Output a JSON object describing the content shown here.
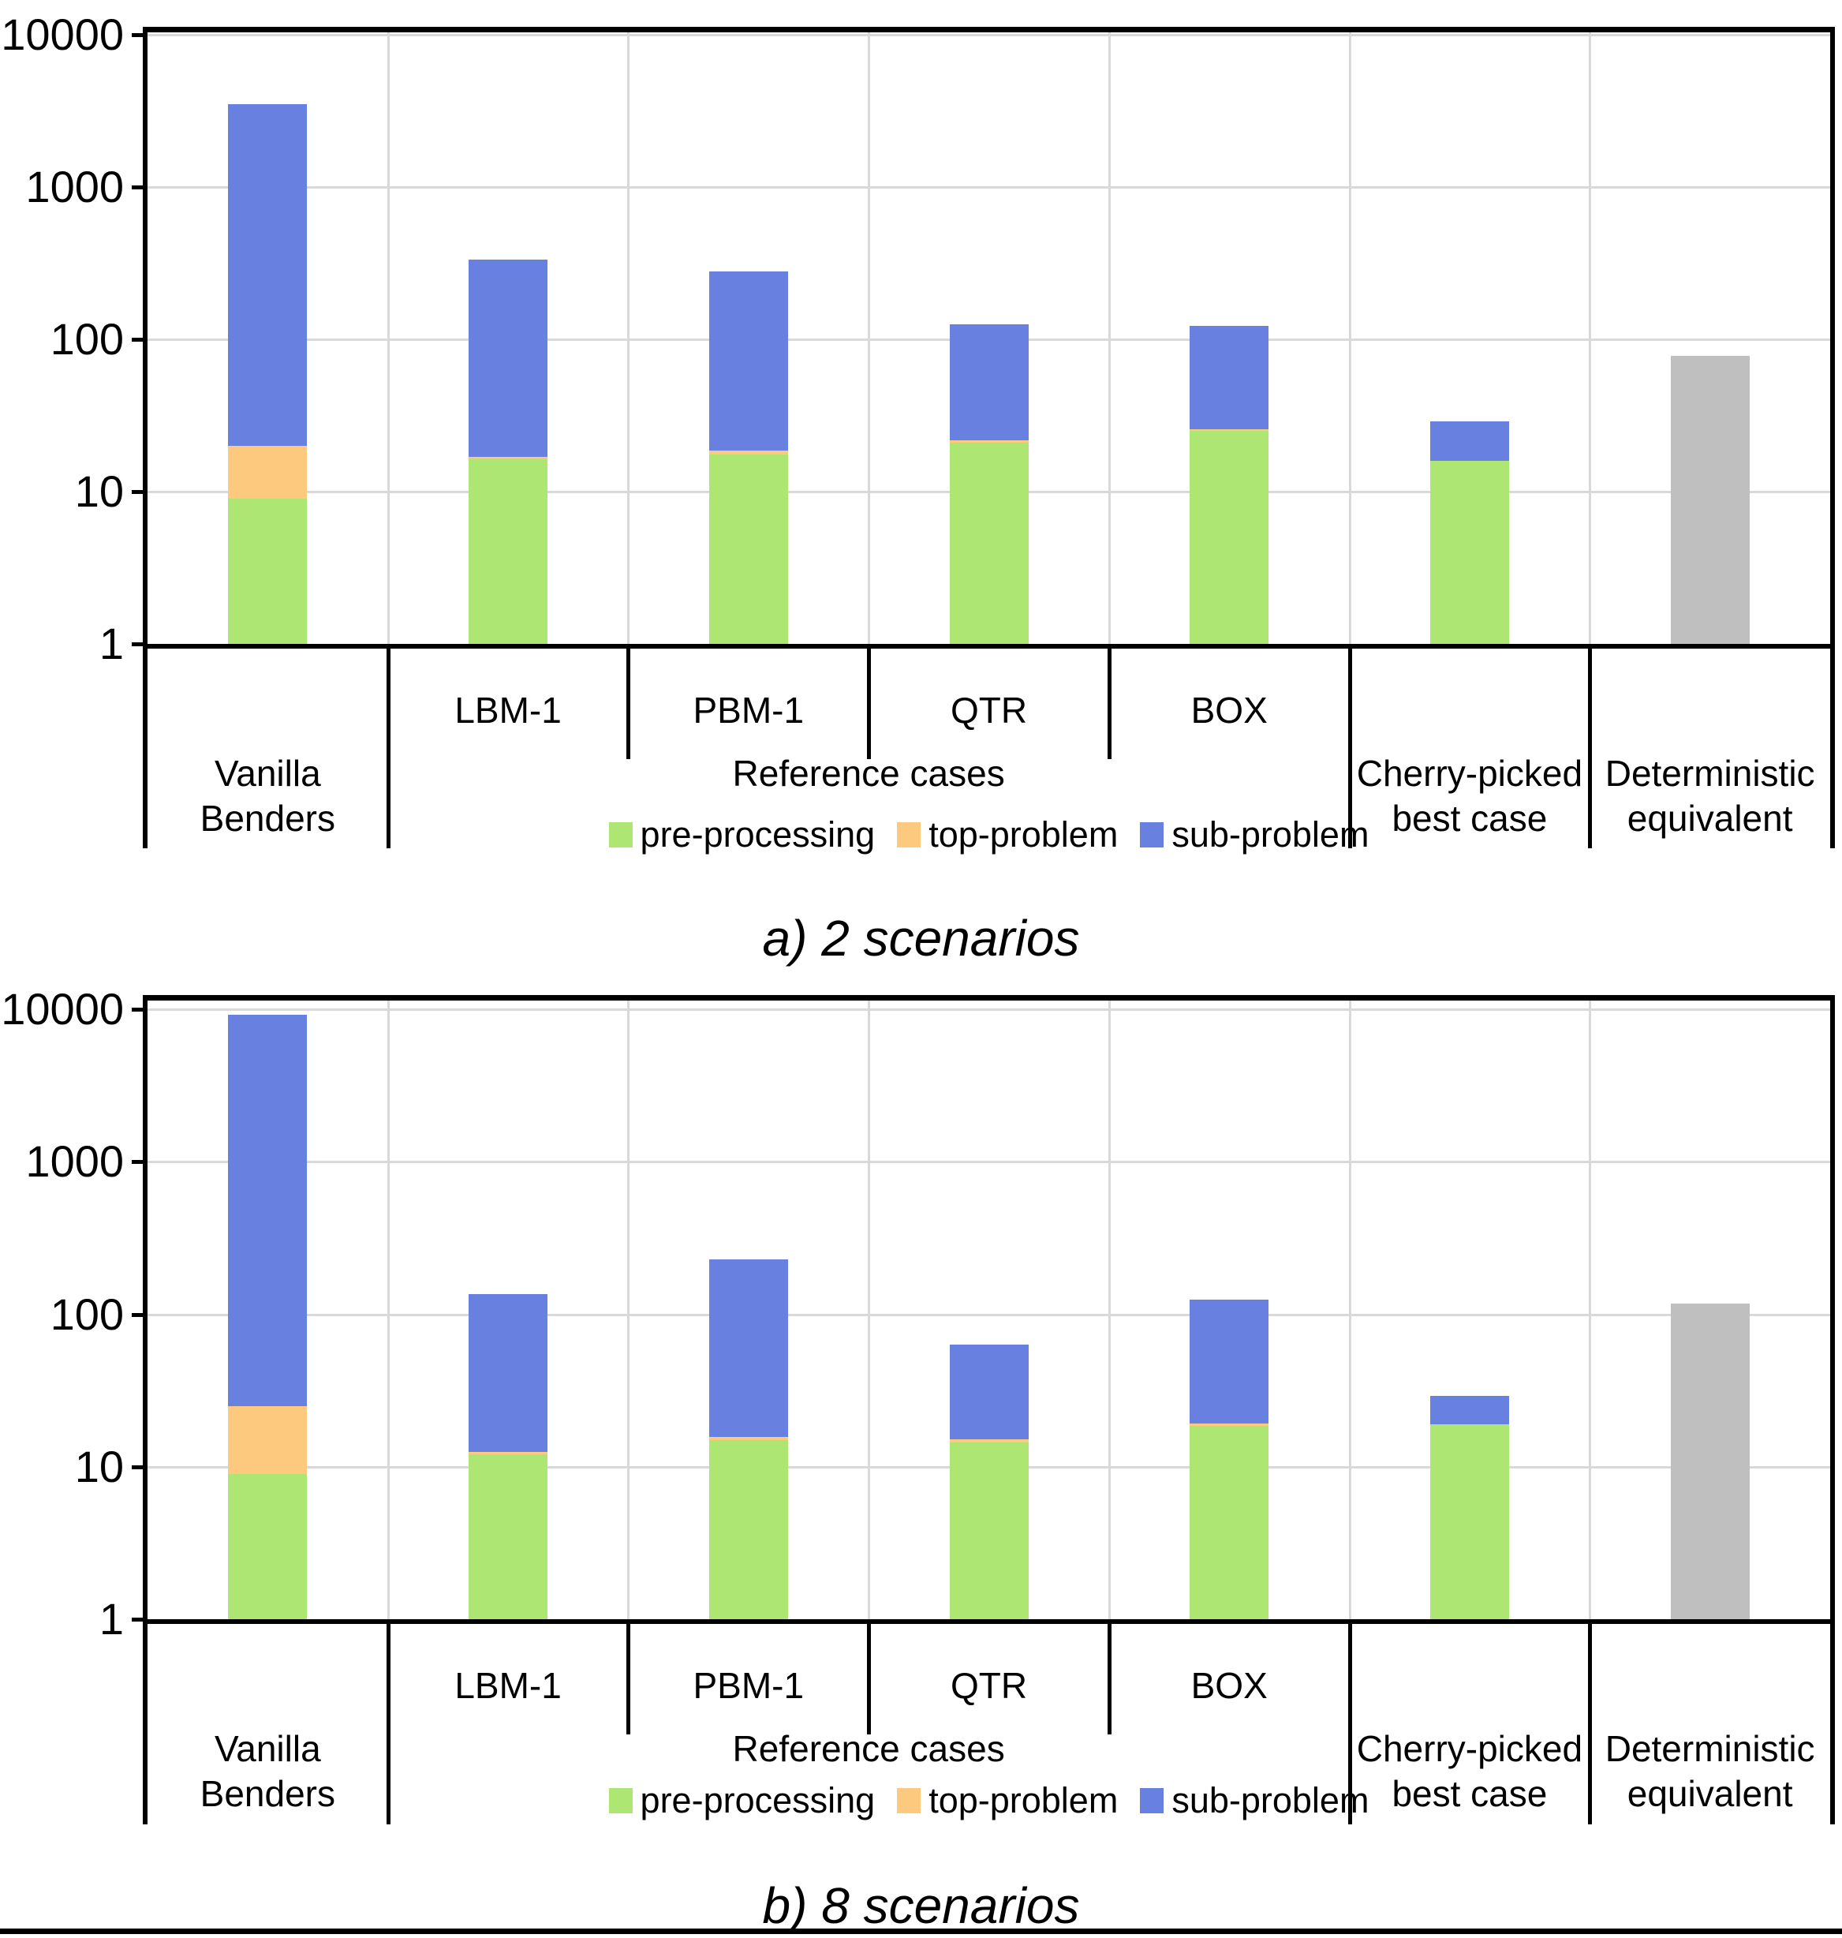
{
  "figure": {
    "bottom_rule": true
  },
  "colors": {
    "pre_processing": "#ADE672",
    "top_problem": "#FDC97E",
    "sub_problem": "#6881E1",
    "deterministic": "#BFBFBF",
    "gridline": "#D9D9D9",
    "axis": "#000000"
  },
  "chart_data": [
    {
      "type": "bar",
      "stacked": true,
      "log_scale": true,
      "title": "a) 2 scenarios",
      "xlabel": "",
      "ylabel": "",
      "ylim": [
        1,
        10000
      ],
      "y_ticks": [
        10000,
        1000,
        100,
        10,
        1
      ],
      "y_tick_labels": [
        "10000",
        "1000",
        "100",
        "10",
        "1"
      ],
      "grid": true,
      "legend_position": "bottom",
      "categories": [
        "Vanilla Benders",
        "LBM-1",
        "PBM-1",
        "QTR",
        "BOX",
        "Cherry-picked best case",
        "Deterministic equivalent"
      ],
      "tick_labels": [
        "",
        "LBM-1",
        "PBM-1",
        "QTR",
        "BOX",
        "",
        ""
      ],
      "group_labels": [
        {
          "label": "Vanilla\nBenders",
          "span": [
            0,
            1
          ]
        },
        {
          "label": "Reference cases",
          "span": [
            1,
            5
          ]
        },
        {
          "label": "Cherry-picked\nbest case",
          "span": [
            5,
            6
          ]
        },
        {
          "label": "Deterministic\nequivalent",
          "span": [
            6,
            7
          ]
        }
      ],
      "series": [
        {
          "name": "pre-processing",
          "color": "#ADE672",
          "values": [
            9,
            16.5,
            17.5,
            21,
            25,
            16,
            0
          ]
        },
        {
          "name": "top-problem",
          "color": "#FDC97E",
          "values": [
            11,
            0.5,
            1,
            0.8,
            0.8,
            0,
            0
          ]
        },
        {
          "name": "sub-problem",
          "color": "#6881E1",
          "values": [
            3480,
            318,
            261.5,
            103.2,
            96.2,
            13,
            0
          ]
        },
        {
          "name": "deterministic",
          "color": "#BFBFBF",
          "values": [
            0,
            0,
            0,
            0,
            0,
            0,
            78
          ]
        }
      ],
      "stack_totals": [
        3500,
        335,
        280,
        125,
        122,
        29,
        78
      ],
      "legend": [
        "pre-processing",
        "top-problem",
        "sub-problem"
      ]
    },
    {
      "type": "bar",
      "stacked": true,
      "log_scale": true,
      "title": "b) 8 scenarios",
      "xlabel": "",
      "ylabel": "",
      "ylim": [
        1,
        10000
      ],
      "y_ticks": [
        10000,
        1000,
        100,
        10,
        1
      ],
      "y_tick_labels": [
        "10000",
        "1000",
        "100",
        "10",
        "1"
      ],
      "grid": true,
      "legend_position": "bottom",
      "categories": [
        "Vanilla Benders",
        "LBM-1",
        "PBM-1",
        "QTR",
        "BOX",
        "Cherry-picked best case",
        "Deterministic equivalent"
      ],
      "tick_labels": [
        "",
        "LBM-1",
        "PBM-1",
        "QTR",
        "BOX",
        "",
        ""
      ],
      "group_labels": [
        {
          "label": "Vanilla\nBenders",
          "span": [
            0,
            1
          ]
        },
        {
          "label": "Reference cases",
          "span": [
            1,
            5
          ]
        },
        {
          "label": "Cherry-picked\nbest case",
          "span": [
            5,
            6
          ]
        },
        {
          "label": "Deterministic\nequivalent",
          "span": [
            6,
            7
          ]
        }
      ],
      "series": [
        {
          "name": "pre-processing",
          "color": "#ADE672",
          "values": [
            9,
            12,
            15,
            14.5,
            18.5,
            19,
            0
          ]
        },
        {
          "name": "top-problem",
          "color": "#FDC97E",
          "values": [
            16,
            0.5,
            0.6,
            0.6,
            0.7,
            0,
            0
          ]
        },
        {
          "name": "sub-problem",
          "color": "#6881E1",
          "values": [
            9175,
            122.5,
            214.4,
            47.9,
            105.8,
            10,
            0
          ]
        },
        {
          "name": "deterministic",
          "color": "#BFBFBF",
          "values": [
            0,
            0,
            0,
            0,
            0,
            0,
            118
          ]
        }
      ],
      "stack_totals": [
        9200,
        135,
        230,
        63,
        125,
        29,
        118
      ],
      "legend": [
        "pre-processing",
        "top-problem",
        "sub-problem"
      ]
    }
  ]
}
